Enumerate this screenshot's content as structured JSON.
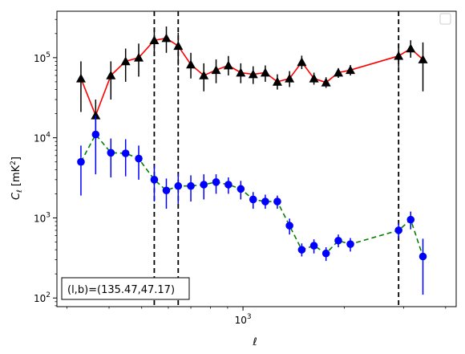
{
  "chart_data": {
    "type": "line",
    "title": "",
    "xlabel": "ℓ",
    "xscale": "log",
    "yscale": "log",
    "xlim": [
      280,
      4300
    ],
    "ylim": [
      78,
      380000
    ],
    "x_tick_labels": [
      {
        "value": 1000,
        "base": "10",
        "exp": "3"
      }
    ],
    "y_tick_labels": [
      {
        "value": 100,
        "base": "10",
        "exp": "2"
      },
      {
        "value": 1000,
        "base": "10",
        "exp": "3"
      },
      {
        "value": 10000,
        "base": "10",
        "exp": "4"
      },
      {
        "value": 100000,
        "base": "10",
        "exp": "5"
      }
    ],
    "grid": false,
    "legend": {
      "placement": "top-right",
      "entries": []
    },
    "vertical_lines": [
      545,
      642,
      2900
    ],
    "annotation": "(l,b)=(135.47,47.17)",
    "series": [
      {
        "marker": "triangle",
        "marker_color": "#000000",
        "line_color": "#ff0000",
        "line_style": "solid",
        "points": [
          {
            "x": 330,
            "y": 55000,
            "lo": 21000,
            "hi": 90000
          },
          {
            "x": 365,
            "y": 19000,
            "lo": 12000,
            "hi": 30000
          },
          {
            "x": 405,
            "y": 60000,
            "lo": 30000,
            "hi": 90000
          },
          {
            "x": 448,
            "y": 90000,
            "lo": 50000,
            "hi": 130000
          },
          {
            "x": 490,
            "y": 100000,
            "lo": 58000,
            "hi": 150000
          },
          {
            "x": 545,
            "y": 165000,
            "lo": 105000,
            "hi": 235000
          },
          {
            "x": 592,
            "y": 175000,
            "lo": 115000,
            "hi": 245000
          },
          {
            "x": 642,
            "y": 140000,
            "lo": 80000,
            "hi": 205000
          },
          {
            "x": 700,
            "y": 82000,
            "lo": 55000,
            "hi": 115000
          },
          {
            "x": 765,
            "y": 60000,
            "lo": 38000,
            "hi": 85000
          },
          {
            "x": 832,
            "y": 70000,
            "lo": 48000,
            "hi": 95000
          },
          {
            "x": 905,
            "y": 80000,
            "lo": 60000,
            "hi": 105000
          },
          {
            "x": 985,
            "y": 65000,
            "lo": 48000,
            "hi": 85000
          },
          {
            "x": 1072,
            "y": 62000,
            "lo": 47000,
            "hi": 78000
          },
          {
            "x": 1165,
            "y": 65000,
            "lo": 50000,
            "hi": 80000
          },
          {
            "x": 1265,
            "y": 50000,
            "lo": 40000,
            "hi": 62000
          },
          {
            "x": 1375,
            "y": 55000,
            "lo": 43000,
            "hi": 68000
          },
          {
            "x": 1495,
            "y": 88000,
            "lo": 72000,
            "hi": 106000
          },
          {
            "x": 1625,
            "y": 55000,
            "lo": 46000,
            "hi": 65000
          },
          {
            "x": 1765,
            "y": 49000,
            "lo": 42000,
            "hi": 57000
          },
          {
            "x": 1920,
            "y": 65000,
            "lo": 56000,
            "hi": 74000
          },
          {
            "x": 2085,
            "y": 70000,
            "lo": 60000,
            "hi": 81000
          },
          {
            "x": 2900,
            "y": 105000,
            "lo": 76000,
            "hi": 145000
          },
          {
            "x": 3150,
            "y": 130000,
            "lo": 100000,
            "hi": 165000
          },
          {
            "x": 3425,
            "y": 95000,
            "lo": 38000,
            "hi": 155000
          }
        ]
      },
      {
        "marker": "circle",
        "marker_color": "#0000ff",
        "line_color": "#008000",
        "line_style": "dashed",
        "points": [
          {
            "x": 330,
            "y": 5000,
            "lo": 1900,
            "hi": 8000
          },
          {
            "x": 365,
            "y": 11000,
            "lo": 3500,
            "hi": 19000
          },
          {
            "x": 405,
            "y": 6500,
            "lo": 3200,
            "hi": 9800
          },
          {
            "x": 448,
            "y": 6400,
            "lo": 3300,
            "hi": 9600
          },
          {
            "x": 490,
            "y": 5500,
            "lo": 3000,
            "hi": 8000
          },
          {
            "x": 545,
            "y": 3000,
            "lo": 1600,
            "hi": 4500
          },
          {
            "x": 592,
            "y": 2200,
            "lo": 1300,
            "hi": 3100
          },
          {
            "x": 642,
            "y": 2500,
            "lo": 1500,
            "hi": 3500
          },
          {
            "x": 700,
            "y": 2500,
            "lo": 1600,
            "hi": 3400
          },
          {
            "x": 765,
            "y": 2600,
            "lo": 1700,
            "hi": 3500
          },
          {
            "x": 832,
            "y": 2800,
            "lo": 2000,
            "hi": 3500
          },
          {
            "x": 905,
            "y": 2600,
            "lo": 2000,
            "hi": 3200
          },
          {
            "x": 985,
            "y": 2300,
            "lo": 1700,
            "hi": 2900
          },
          {
            "x": 1072,
            "y": 1700,
            "lo": 1300,
            "hi": 2100
          },
          {
            "x": 1165,
            "y": 1600,
            "lo": 1300,
            "hi": 1950
          },
          {
            "x": 1265,
            "y": 1600,
            "lo": 1300,
            "hi": 1900
          },
          {
            "x": 1375,
            "y": 800,
            "lo": 620,
            "hi": 980
          },
          {
            "x": 1495,
            "y": 400,
            "lo": 330,
            "hi": 480
          },
          {
            "x": 1625,
            "y": 450,
            "lo": 360,
            "hi": 540
          },
          {
            "x": 1765,
            "y": 360,
            "lo": 290,
            "hi": 430
          },
          {
            "x": 1920,
            "y": 520,
            "lo": 430,
            "hi": 620
          },
          {
            "x": 2085,
            "y": 470,
            "lo": 380,
            "hi": 560
          },
          {
            "x": 2900,
            "y": 700,
            "lo": 560,
            "hi": 850
          },
          {
            "x": 3150,
            "y": 950,
            "lo": 720,
            "hi": 1200
          },
          {
            "x": 3425,
            "y": 330,
            "lo": 110,
            "hi": 550
          }
        ]
      }
    ]
  }
}
